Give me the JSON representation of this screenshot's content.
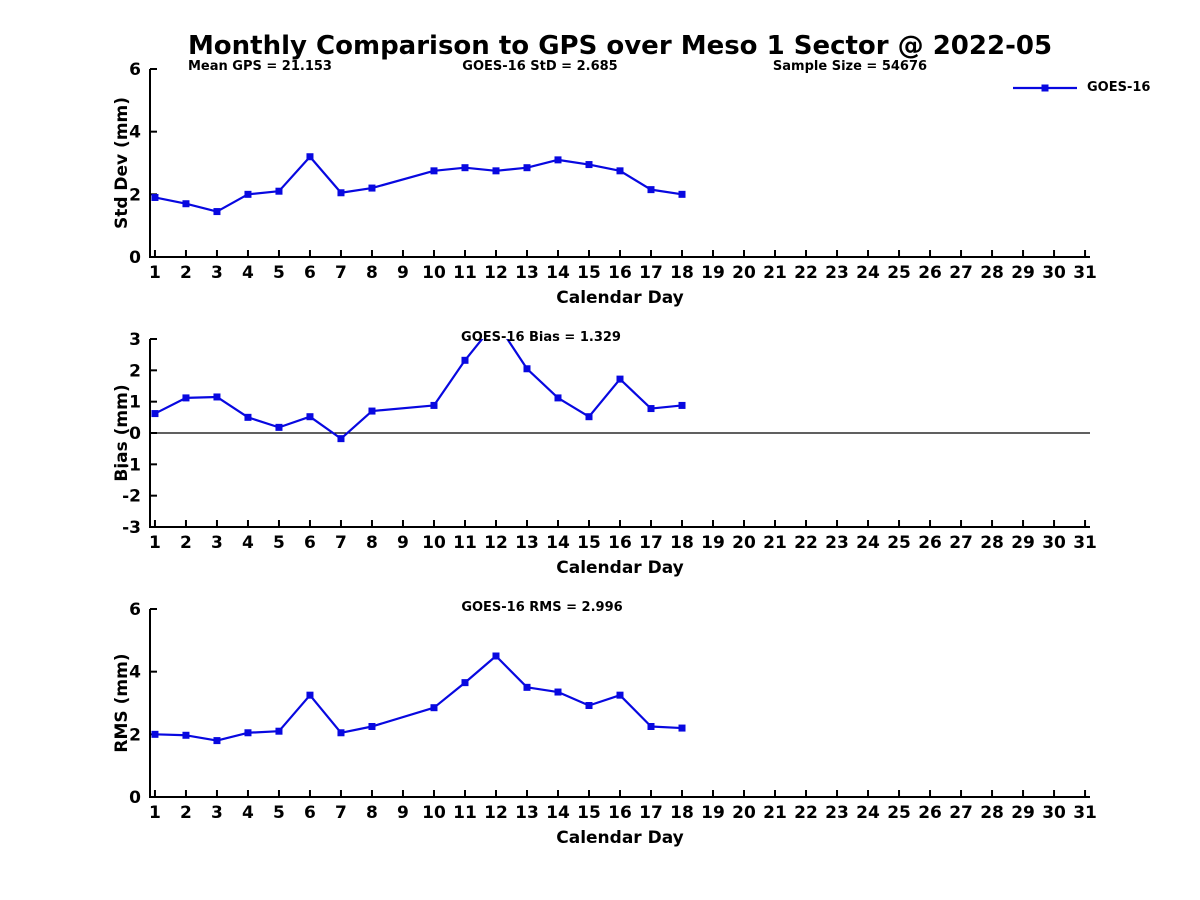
{
  "title": "Monthly Comparison to GPS over Meso 1 Sector @ 2022-05",
  "legend": {
    "label": "GOES-16",
    "color": "#0808e0"
  },
  "chart_data": [
    {
      "type": "line",
      "title_annotations": [
        "Mean GPS = 21.153",
        "GOES-16 StD = 2.685",
        "Sample Size = 54676"
      ],
      "xlabel": "Calendar Day",
      "ylabel": "Std Dev (mm)",
      "xlim": [
        0.84,
        31.16
      ],
      "ylim": [
        0,
        6
      ],
      "yticks": [
        0,
        2,
        4,
        6
      ],
      "xticks": [
        1,
        2,
        3,
        4,
        5,
        6,
        7,
        8,
        9,
        10,
        11,
        12,
        13,
        14,
        15,
        16,
        17,
        18,
        19,
        20,
        21,
        22,
        23,
        24,
        25,
        26,
        27,
        28,
        29,
        30,
        31
      ],
      "grid": false,
      "legend_position": "upper-right-outside",
      "series": [
        {
          "name": "GOES-16",
          "color": "#0808e0",
          "marker": "square",
          "x": [
            1,
            2,
            3,
            4,
            5,
            6,
            7,
            8,
            10,
            11,
            12,
            13,
            14,
            15,
            16,
            17,
            18
          ],
          "y": [
            1.9,
            1.7,
            1.45,
            2.0,
            2.1,
            3.2,
            2.05,
            2.2,
            2.75,
            2.85,
            2.75,
            2.85,
            3.1,
            2.95,
            2.75,
            2.15,
            2.0
          ]
        }
      ]
    },
    {
      "type": "line",
      "title_annotations": [
        "GOES-16 Bias = 1.329"
      ],
      "xlabel": "Calendar Day",
      "ylabel": "Bias (mm)",
      "xlim": [
        0.84,
        31.16
      ],
      "ylim": [
        -3,
        3
      ],
      "yticks": [
        -3,
        -2,
        -1,
        0,
        1,
        2,
        3
      ],
      "xticks": [
        1,
        2,
        3,
        4,
        5,
        6,
        7,
        8,
        9,
        10,
        11,
        12,
        13,
        14,
        15,
        16,
        17,
        18,
        19,
        20,
        21,
        22,
        23,
        24,
        25,
        26,
        27,
        28,
        29,
        30,
        31
      ],
      "grid": false,
      "zero_line": true,
      "series": [
        {
          "name": "GOES-16",
          "color": "#0808e0",
          "marker": "square",
          "x": [
            1,
            2,
            3,
            4,
            5,
            6,
            7,
            8,
            10,
            11,
            12,
            13,
            14,
            15,
            16,
            17,
            18
          ],
          "y": [
            0.62,
            1.12,
            1.15,
            0.5,
            0.18,
            0.52,
            -0.18,
            0.7,
            0.88,
            2.32,
            3.55,
            2.05,
            1.12,
            0.52,
            1.72,
            0.78,
            0.88
          ]
        }
      ]
    },
    {
      "type": "line",
      "title_annotations": [
        "GOES-16 RMS = 2.996"
      ],
      "xlabel": "Calendar Day",
      "ylabel": "RMS (mm)",
      "xlim": [
        0.84,
        31.16
      ],
      "ylim": [
        0,
        6
      ],
      "yticks": [
        0,
        2,
        4,
        6
      ],
      "xticks": [
        1,
        2,
        3,
        4,
        5,
        6,
        7,
        8,
        9,
        10,
        11,
        12,
        13,
        14,
        15,
        16,
        17,
        18,
        19,
        20,
        21,
        22,
        23,
        24,
        25,
        26,
        27,
        28,
        29,
        30,
        31
      ],
      "grid": false,
      "series": [
        {
          "name": "GOES-16",
          "color": "#0808e0",
          "marker": "square",
          "x": [
            1,
            2,
            3,
            4,
            5,
            6,
            7,
            8,
            10,
            11,
            12,
            13,
            14,
            15,
            16,
            17,
            18
          ],
          "y": [
            2.0,
            1.97,
            1.8,
            2.05,
            2.1,
            3.25,
            2.05,
            2.25,
            2.85,
            3.65,
            4.5,
            3.5,
            3.35,
            2.92,
            3.25,
            2.25,
            2.2
          ]
        }
      ]
    }
  ]
}
